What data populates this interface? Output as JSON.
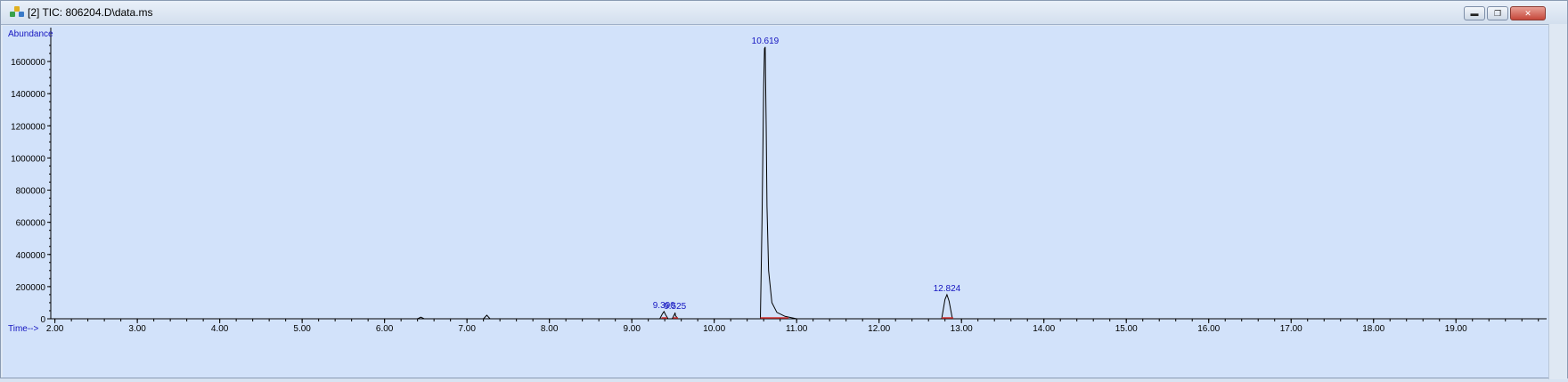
{
  "window": {
    "title": "[2] TIC: 806204.D\\data.ms",
    "buttons": [
      "minimize",
      "restore",
      "close"
    ]
  },
  "colors": {
    "plot_background": "#d2e2fa",
    "trace": "#000000",
    "peak_label": "#1515c0",
    "axis_label": "#1515c0",
    "baseline_marker": "#d23030"
  },
  "chart_data": {
    "type": "line",
    "title": "",
    "xlabel": "Time-->",
    "ylabel": "Abundance",
    "xlim": [
      1.95,
      20.1
    ],
    "ylim": [
      0,
      1700000
    ],
    "x_ticks": [
      "2.00",
      "3.00",
      "4.00",
      "5.00",
      "6.00",
      "7.00",
      "8.00",
      "9.00",
      "10.00",
      "11.00",
      "12.00",
      "13.00",
      "14.00",
      "15.00",
      "16.00",
      "17.00",
      "18.00",
      "19.00"
    ],
    "y_ticks": [
      "0",
      "200000",
      "400000",
      "600000",
      "800000",
      "1000000",
      "1200000",
      "1400000",
      "1600000"
    ],
    "grid": false,
    "series": [
      {
        "x": [
          1.95,
          6.4,
          6.44,
          6.48,
          7.2,
          7.24,
          7.28,
          9.34,
          9.37,
          9.39,
          9.41,
          9.44,
          9.49,
          9.52,
          9.525,
          9.53,
          9.56,
          10.56,
          10.58,
          10.6,
          10.61,
          10.619,
          10.63,
          10.64,
          10.66,
          10.7,
          10.76,
          10.86,
          11.0,
          12.76,
          12.8,
          12.824,
          12.85,
          12.89,
          20.1
        ],
        "y": [
          0,
          0,
          10000,
          0,
          0,
          22000,
          0,
          0,
          30000,
          45000,
          25000,
          0,
          0,
          30000,
          38000,
          20000,
          0,
          0,
          600000,
          1450000,
          1680000,
          1690000,
          1200000,
          700000,
          300000,
          100000,
          40000,
          15000,
          0,
          0,
          120000,
          150000,
          110000,
          0,
          0
        ]
      }
    ],
    "peak_labels": [
      {
        "x": 9.39,
        "y": 45000,
        "label": "9.390"
      },
      {
        "x": 9.525,
        "y": 38000,
        "label": "9.525"
      },
      {
        "x": 10.619,
        "y": 1690000,
        "label": "10.619"
      },
      {
        "x": 12.824,
        "y": 150000,
        "label": "12.824"
      }
    ]
  }
}
